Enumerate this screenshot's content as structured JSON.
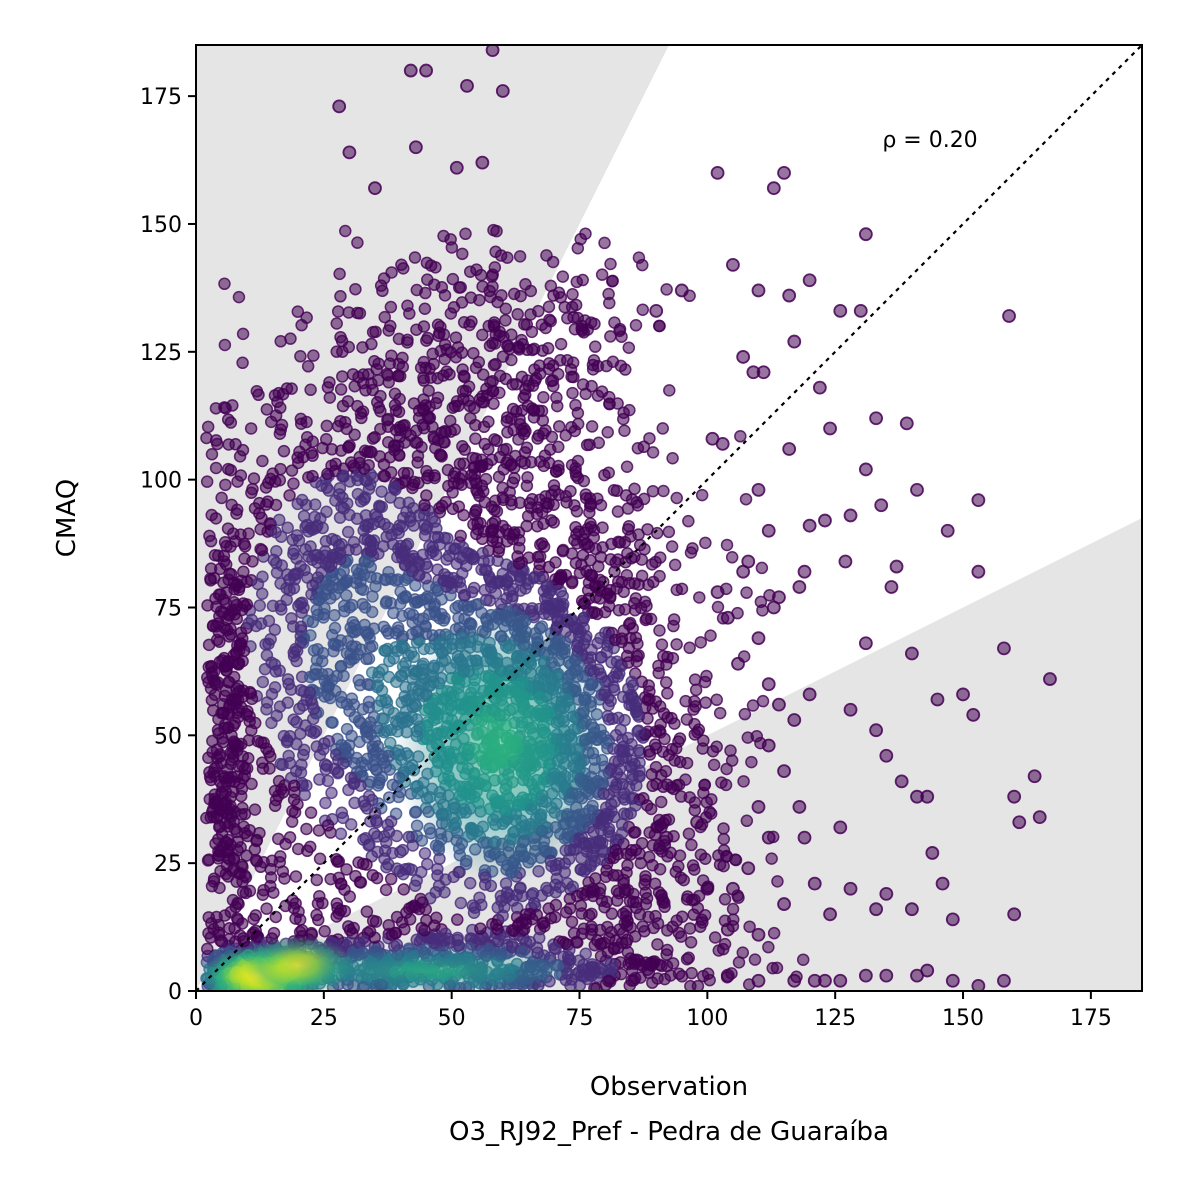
{
  "chart_data": {
    "type": "scatter",
    "title": "",
    "xlabel": "Observation",
    "xlabel2": "O3_RJ92_Pref - Pedra de Guaraíba",
    "ylabel": "CMAQ",
    "xlim": [
      0,
      185
    ],
    "ylim": [
      0,
      185
    ],
    "xticks": [
      0,
      25,
      50,
      75,
      100,
      125,
      150,
      175
    ],
    "yticks": [
      0,
      25,
      50,
      75,
      100,
      125,
      150,
      175
    ],
    "annotation": "ρ = 0.20",
    "reference_line": {
      "type": "1:1",
      "style": "dotted",
      "color": "#000000"
    },
    "shaded_regions": [
      {
        "description": "above factor-2 line",
        "color": "#e5e5e5",
        "bound_slope": 2
      },
      {
        "description": "below factor-1/2 line",
        "color": "#e5e5e5",
        "bound_slope": 0.5
      }
    ],
    "colormap": "viridis",
    "density_centers": [
      {
        "x": 12,
        "y": 3,
        "density": 1.0
      },
      {
        "x": 20,
        "y": 5,
        "density": 0.85
      },
      {
        "x": 60,
        "y": 48,
        "density": 0.6
      },
      {
        "x": 45,
        "y": 4,
        "density": 0.55
      }
    ],
    "outlier_points": [
      [
        28,
        173
      ],
      [
        42,
        180
      ],
      [
        45,
        180
      ],
      [
        58,
        184
      ],
      [
        53,
        177
      ],
      [
        60,
        176
      ],
      [
        30,
        164
      ],
      [
        43,
        165
      ],
      [
        35,
        157
      ],
      [
        51,
        161
      ],
      [
        56,
        162
      ],
      [
        102,
        160
      ],
      [
        115,
        160
      ],
      [
        113,
        157
      ],
      [
        131,
        148
      ],
      [
        159,
        132
      ],
      [
        141,
        98
      ],
      [
        145,
        57
      ],
      [
        158,
        67
      ],
      [
        167,
        61
      ],
      [
        164,
        42
      ],
      [
        160,
        38
      ],
      [
        153,
        96
      ],
      [
        153,
        82
      ],
      [
        150,
        58
      ],
      [
        152,
        54
      ],
      [
        147,
        90
      ],
      [
        139,
        111
      ],
      [
        133,
        112
      ],
      [
        128,
        93
      ],
      [
        130,
        133
      ],
      [
        126,
        133
      ],
      [
        120,
        139
      ],
      [
        117,
        127
      ],
      [
        123,
        92
      ],
      [
        127,
        84
      ],
      [
        134,
        95
      ],
      [
        131,
        102
      ],
      [
        136,
        79
      ],
      [
        137,
        83
      ],
      [
        140,
        66
      ],
      [
        131,
        68
      ],
      [
        128,
        55
      ],
      [
        133,
        51
      ],
      [
        135,
        46
      ],
      [
        138,
        41
      ],
      [
        141,
        38
      ],
      [
        143,
        38
      ],
      [
        144,
        27
      ],
      [
        146,
        21
      ],
      [
        148,
        14
      ],
      [
        140,
        16
      ],
      [
        128,
        20
      ],
      [
        133,
        16
      ],
      [
        135,
        19
      ],
      [
        124,
        15
      ],
      [
        126,
        32
      ],
      [
        119,
        30
      ],
      [
        121,
        21
      ],
      [
        131,
        3
      ],
      [
        135,
        3
      ],
      [
        141,
        3
      ],
      [
        143,
        4
      ],
      [
        158,
        2
      ],
      [
        153,
        1
      ],
      [
        148,
        2
      ],
      [
        161,
        33
      ],
      [
        165,
        34
      ],
      [
        160,
        15
      ],
      [
        111,
        121
      ],
      [
        116,
        106
      ],
      [
        124,
        110
      ],
      [
        120,
        91
      ],
      [
        122,
        118
      ],
      [
        113,
        75
      ],
      [
        114,
        77
      ],
      [
        118,
        79
      ],
      [
        119,
        82
      ],
      [
        109,
        121
      ],
      [
        107,
        124
      ],
      [
        110,
        137
      ],
      [
        116,
        136
      ],
      [
        105,
        142
      ],
      [
        95,
        137
      ],
      [
        90,
        133
      ],
      [
        101,
        108
      ],
      [
        103,
        107
      ],
      [
        110,
        98
      ],
      [
        112,
        90
      ],
      [
        108,
        84
      ],
      [
        107,
        82
      ],
      [
        102,
        78
      ],
      [
        104,
        73
      ],
      [
        106,
        64
      ],
      [
        110,
        69
      ],
      [
        112,
        60
      ],
      [
        114,
        56
      ],
      [
        117,
        53
      ],
      [
        120,
        58
      ],
      [
        112,
        48
      ],
      [
        115,
        43
      ],
      [
        118,
        36
      ],
      [
        110,
        36
      ],
      [
        112,
        30
      ],
      [
        108,
        24
      ],
      [
        105,
        20
      ],
      [
        100,
        20
      ],
      [
        98,
        33
      ],
      [
        92,
        30
      ],
      [
        104,
        12
      ],
      [
        110,
        11
      ],
      [
        115,
        17
      ],
      [
        117,
        2
      ],
      [
        121,
        2
      ],
      [
        123,
        2
      ],
      [
        126,
        2
      ],
      [
        110,
        2
      ],
      [
        104,
        3
      ]
    ]
  }
}
